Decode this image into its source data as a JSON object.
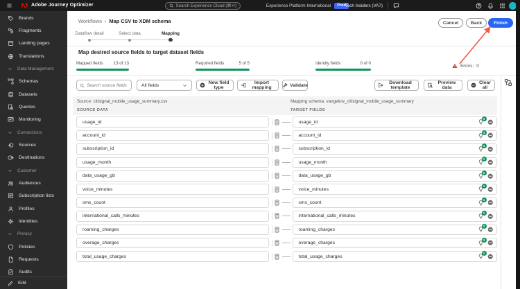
{
  "topbar": {
    "app_title": "Adobe Journey Optimizer",
    "search_placeholder": "Search Experience Cloud (⌘+/)",
    "org_name": "Experience Platform International",
    "env_badge": "Prod",
    "tenant": "Tech Insiders (VA7)"
  },
  "sidebar": {
    "items": [
      {
        "type": "item",
        "label": "Brands",
        "icon": "brands-icon"
      },
      {
        "type": "item",
        "label": "Fragments",
        "icon": "fragments-icon"
      },
      {
        "type": "item",
        "label": "Landing pages",
        "icon": "landing-pages-icon"
      },
      {
        "type": "item",
        "label": "Translations",
        "icon": "translations-icon"
      },
      {
        "type": "section",
        "label": "Data Management"
      },
      {
        "type": "item",
        "label": "Schemas",
        "icon": "schemas-icon"
      },
      {
        "type": "item",
        "label": "Datasets",
        "icon": "datasets-icon"
      },
      {
        "type": "item",
        "label": "Queries",
        "icon": "queries-icon"
      },
      {
        "type": "item",
        "label": "Monitoring",
        "icon": "monitoring-icon"
      },
      {
        "type": "section",
        "label": "Connections"
      },
      {
        "type": "item",
        "label": "Sources",
        "icon": "sources-icon"
      },
      {
        "type": "item",
        "label": "Destinations",
        "icon": "destinations-icon"
      },
      {
        "type": "section",
        "label": "Customer"
      },
      {
        "type": "item",
        "label": "Audiences",
        "icon": "audiences-icon"
      },
      {
        "type": "item",
        "label": "Subscription lists",
        "icon": "subscription-lists-icon"
      },
      {
        "type": "item",
        "label": "Profiles",
        "icon": "profiles-icon"
      },
      {
        "type": "item",
        "label": "Identities",
        "icon": "identities-icon"
      },
      {
        "type": "section",
        "label": "Privacy"
      },
      {
        "type": "item",
        "label": "Policies",
        "icon": "policies-icon"
      },
      {
        "type": "item",
        "label": "Requests",
        "icon": "requests-icon"
      },
      {
        "type": "item",
        "label": "Audits",
        "icon": "audits-icon"
      }
    ],
    "edit_label": "Edit"
  },
  "workflow": {
    "breadcrumb_root": "Workflows",
    "breadcrumb_separator": "›",
    "breadcrumb_current": "Map CSV to XDM schema",
    "steps": [
      {
        "label": "Dataflow detail",
        "state": "done"
      },
      {
        "label": "Select data",
        "state": "done"
      },
      {
        "label": "Mapping",
        "state": "current"
      }
    ],
    "cancel_label": "Cancel",
    "back_label": "Back",
    "finish_label": "Finish",
    "page_title": "Map desired source fields to target dataset fields",
    "progress": [
      {
        "label": "Mapped fields",
        "value": "13 of 13",
        "percent": 100
      },
      {
        "label": "Required fields",
        "value": "5 of 5",
        "percent": 100
      },
      {
        "label": "Identity fields",
        "value": "0 of 0",
        "percent": 100
      }
    ],
    "errors_label": "Errors:",
    "errors_count": "0"
  },
  "toolbar": {
    "search_placeholder": "Search source fields",
    "filter_value": "All fields",
    "new_field_type_label": "New field type",
    "import_mapping_label": "Import mapping",
    "validate_label": "Validate",
    "download_template_label": "Download template",
    "preview_data_label": "Preview data",
    "clear_all_label": "Clear all"
  },
  "mapper": {
    "source_file_label": "Source: citisignal_mobile_usage_summary.csv",
    "schema_label": "Mapping schema: vangeluw_citisignal_mobile_usage_summary",
    "source_column_header": "SOURCE DATA",
    "target_column_header": "TARGET FIELDS",
    "rows": [
      {
        "source": "usage_id",
        "target": "usage_id",
        "suggestions": "3"
      },
      {
        "source": "account_id",
        "target": "account_id",
        "suggestions": "3"
      },
      {
        "source": "subscription_id",
        "target": "subscription_id",
        "suggestions": "3"
      },
      {
        "source": "usage_month",
        "target": "usage_month",
        "suggestions": "1"
      },
      {
        "source": "data_usage_gb",
        "target": "data_usage_gb",
        "suggestions": "2"
      },
      {
        "source": "voice_minutes",
        "target": "voice_minutes",
        "suggestions": "1"
      },
      {
        "source": "sms_count",
        "target": "sms_count",
        "suggestions": "1"
      },
      {
        "source": "international_calls_minutes",
        "target": "international_calls_minutes",
        "suggestions": "1"
      },
      {
        "source": "roaming_charges",
        "target": "roaming_charges",
        "suggestions": "2"
      },
      {
        "source": "overage_charges",
        "target": "overage_charges",
        "suggestions": "3"
      },
      {
        "source": "total_usage_charges",
        "target": "total_usage_charges",
        "suggestions": "1"
      }
    ]
  },
  "colors": {
    "accent_blue": "#2765f5",
    "badge_blue": "#3b63fb",
    "green": "#0e9256",
    "warning_red": "#d7373f",
    "arrow_red": "#f2584c",
    "avatar_teal": "#17b5c5"
  }
}
